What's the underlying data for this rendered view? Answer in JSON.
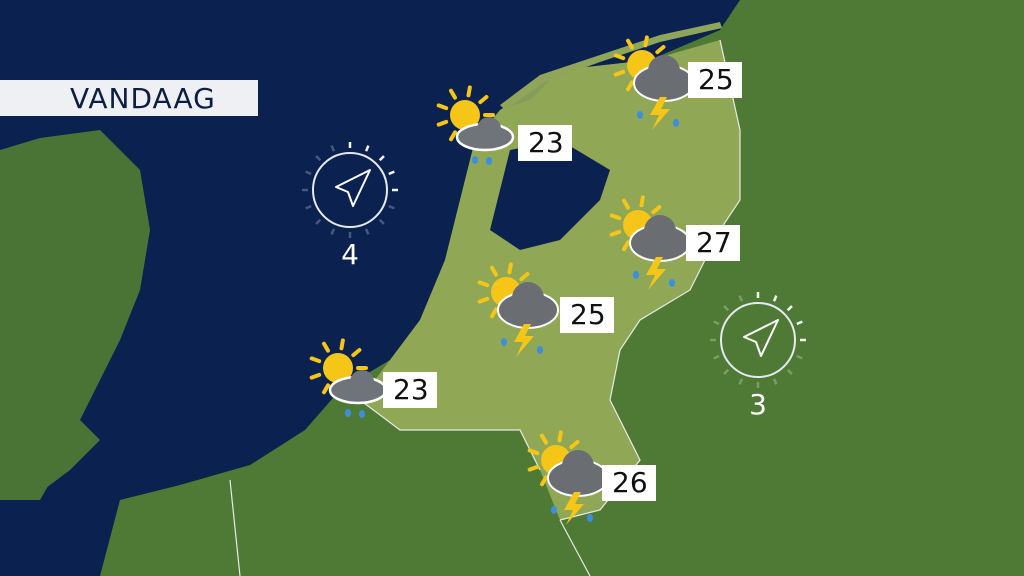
{
  "title": "VANDAAG",
  "colors": {
    "sea": "#0b2150",
    "land": "#4f7a35",
    "netherlands": "#9bb05a",
    "label_bg": "#ffffff",
    "sun": "#f5c518",
    "cloud": "#6a6e72",
    "lightning": "#f5c518",
    "rain": "#3c8fe0"
  },
  "forecasts": [
    {
      "icon": "sun-cloud-rain",
      "temp": "23"
    },
    {
      "icon": "sun-cloud-thunder-rain",
      "temp": "25"
    },
    {
      "icon": "sun-cloud-thunder-rain",
      "temp": "27"
    },
    {
      "icon": "sun-cloud-thunder-rain",
      "temp": "25"
    },
    {
      "icon": "sun-cloud-rain",
      "temp": "23"
    },
    {
      "icon": "sun-cloud-thunder-rain",
      "temp": "26"
    }
  ],
  "wind": [
    {
      "icon": "wind-direction-arrow-icon",
      "force": "4"
    },
    {
      "icon": "wind-direction-arrow-icon",
      "force": "3"
    }
  ]
}
